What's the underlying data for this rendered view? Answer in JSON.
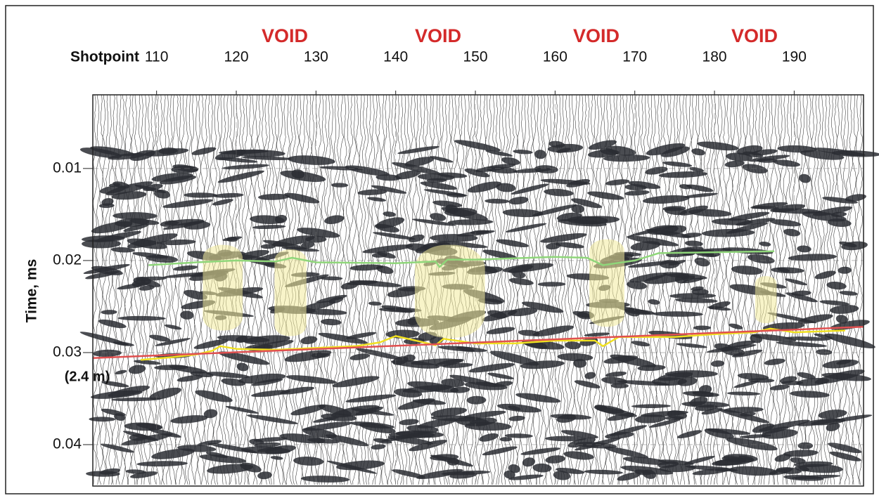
{
  "chart_data": {
    "type": "seismic",
    "xlabel": "Shotpoint",
    "ylabel": "Time, ms",
    "xlim": [
      102,
      198.7
    ],
    "ylim": [
      0.002,
      0.0445
    ],
    "xticks": [
      110,
      120,
      130,
      140,
      150,
      160,
      170,
      180,
      190
    ],
    "yticks": [
      0.01,
      0.02,
      0.03,
      0.04
    ],
    "grid": true,
    "annotations": [
      "VOID",
      "VOID",
      "VOID",
      "VOID",
      "(2.4 m)"
    ],
    "void_color": "#f2eb9c",
    "void_zones": [
      {
        "x": [
          115.8,
          120.8
        ],
        "y": [
          0.0183,
          0.0276
        ]
      },
      {
        "x": [
          124.8,
          128.8
        ],
        "y": [
          0.0188,
          0.0282
        ]
      },
      {
        "x": [
          142.4,
          151.2
        ],
        "y": [
          0.0183,
          0.0284
        ]
      },
      {
        "x": [
          164.3,
          168.7
        ],
        "y": [
          0.0177,
          0.0272
        ]
      },
      {
        "x": [
          185.1,
          187.8
        ],
        "y": [
          0.0217,
          0.0268
        ]
      }
    ],
    "series": [
      {
        "color": "#8fd67a",
        "x": [
          109,
          115,
          120,
          125,
          127,
          130,
          140,
          145,
          145.5,
          146.5,
          150,
          160,
          164,
          166,
          170,
          173,
          180,
          187.5
        ],
        "values": [
          0.0205,
          0.0202,
          0.02,
          0.0201,
          0.0197,
          0.0202,
          0.0203,
          0.0201,
          0.0207,
          0.0199,
          0.0199,
          0.0196,
          0.0197,
          0.0205,
          0.02,
          0.0192,
          0.0191,
          0.019
        ]
      },
      {
        "color": "#f0e020",
        "x": [
          108,
          112,
          115,
          117,
          118,
          120,
          125,
          130,
          135,
          138,
          140,
          143,
          145,
          146,
          150,
          155,
          160,
          165,
          166,
          168,
          175,
          180,
          185,
          187,
          190,
          196.4
        ],
        "values": [
          0.0308,
          0.0305,
          0.0302,
          0.0298,
          0.0293,
          0.0296,
          0.0297,
          0.0295,
          0.0293,
          0.0289,
          0.0282,
          0.0288,
          0.0292,
          0.0285,
          0.029,
          0.029,
          0.0287,
          0.0287,
          0.0293,
          0.0283,
          0.0283,
          0.028,
          0.0278,
          0.0274,
          0.0278,
          0.0276
        ]
      },
      {
        "color": "#e05050",
        "x": [
          102,
          198.7
        ],
        "values": [
          0.0306,
          0.0272
        ]
      }
    ]
  }
}
